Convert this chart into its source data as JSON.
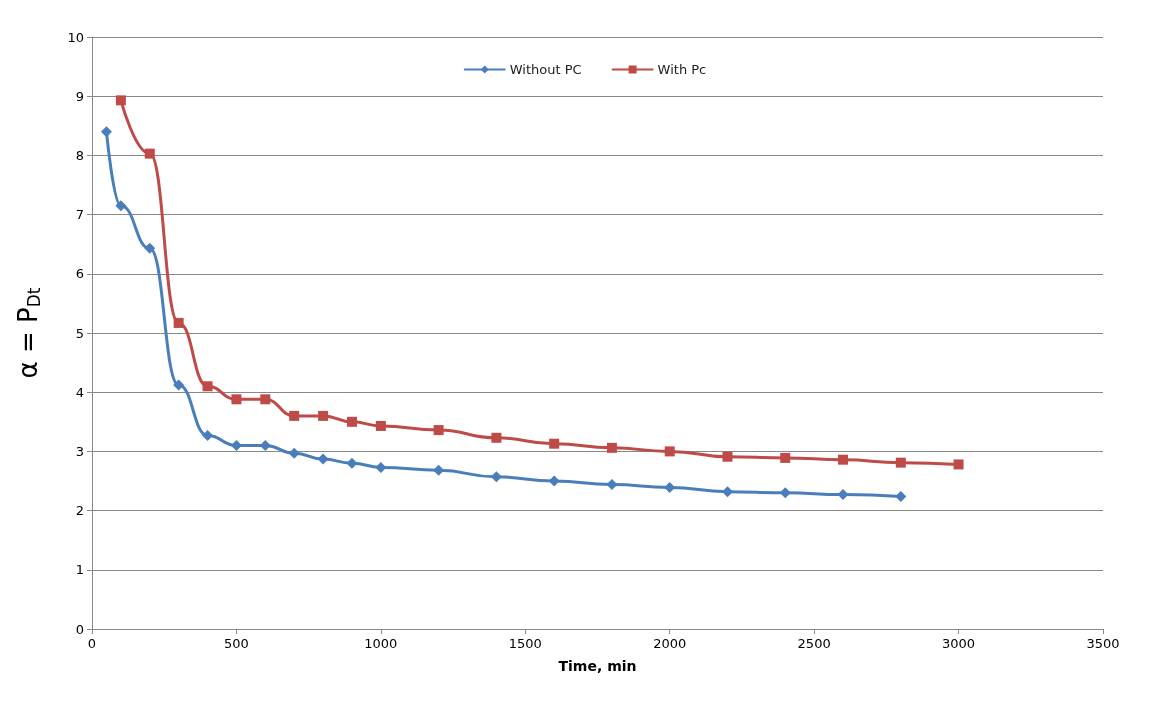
{
  "chart_data": {
    "type": "line",
    "xlabel": "Time, min",
    "ylabel": "α = P$_{Dt}$",
    "xlim": [
      0,
      3500
    ],
    "xticks": [
      0,
      500,
      1000,
      1500,
      2000,
      2500,
      3000,
      3500
    ],
    "ylim": [
      0,
      10
    ],
    "yticks": [
      0,
      1,
      2,
      3,
      4,
      5,
      6,
      7,
      8,
      9,
      10
    ],
    "grid": "y",
    "legend": "top",
    "line_style": "solid",
    "series": [
      {
        "name": "Without PC",
        "color": "#4a7ebb",
        "marker": "diamond",
        "x": [
          50,
          100,
          200,
          300,
          400,
          500,
          600,
          700,
          800,
          900,
          1000,
          1200,
          1400,
          1600,
          1800,
          2000,
          2200,
          2400,
          2600,
          2800
        ],
        "values": [
          8.4,
          7.15,
          6.43,
          4.12,
          3.27,
          3.1,
          3.1,
          2.97,
          2.87,
          2.8,
          2.73,
          2.68,
          2.57,
          2.5,
          2.44,
          2.39,
          2.32,
          2.3,
          2.27,
          2.24
        ]
      },
      {
        "name": "With Pc",
        "color": "#be4b48",
        "marker": "square",
        "x": [
          100,
          200,
          300,
          400,
          500,
          600,
          700,
          800,
          900,
          1000,
          1200,
          1400,
          1600,
          1800,
          2000,
          2200,
          2400,
          2600,
          2800,
          3000
        ],
        "values": [
          8.93,
          8.03,
          5.17,
          4.1,
          3.88,
          3.88,
          3.6,
          3.6,
          3.5,
          3.43,
          3.36,
          3.23,
          3.13,
          3.06,
          3.0,
          2.91,
          2.89,
          2.86,
          2.81,
          2.78
        ]
      }
    ]
  }
}
